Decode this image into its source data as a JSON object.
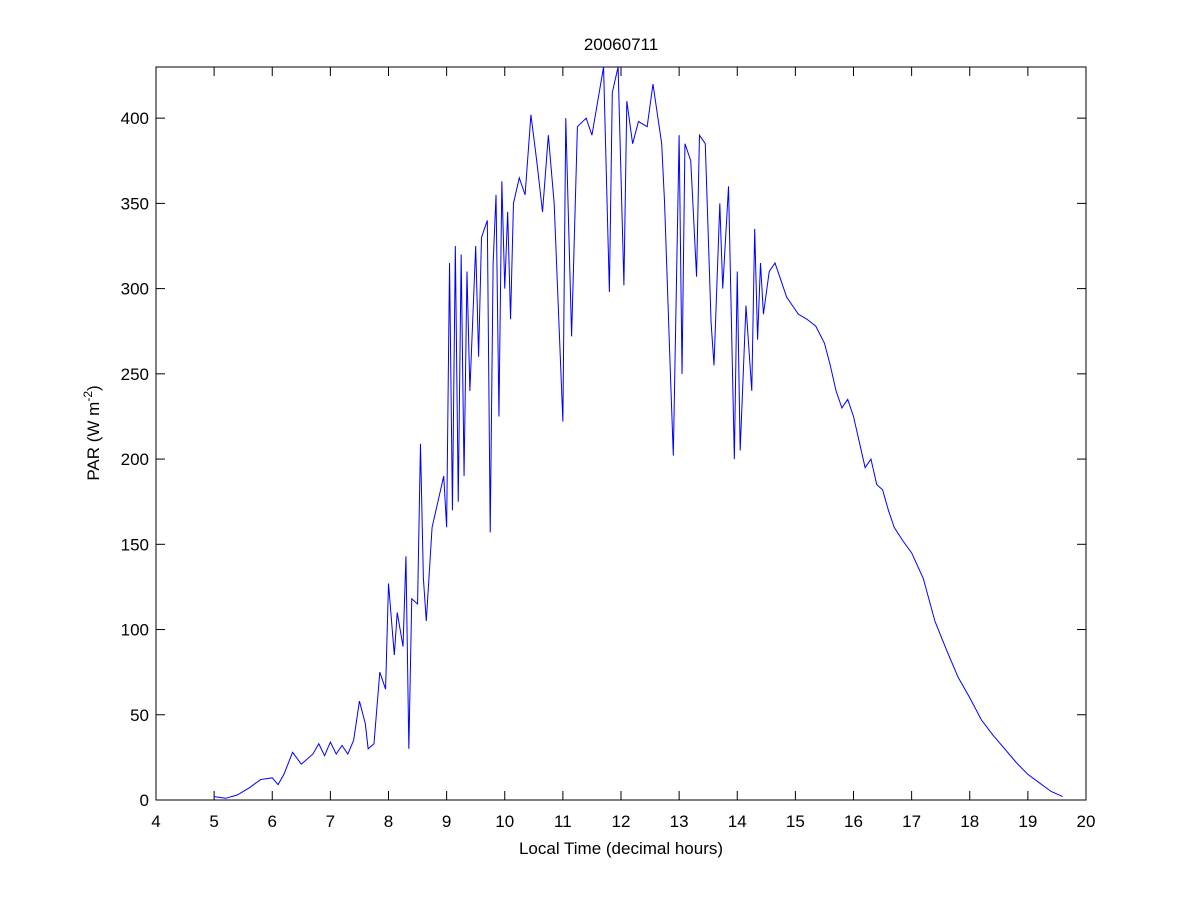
{
  "chart_data": {
    "type": "line",
    "title": "20060711",
    "xlabel": "Local Time (decimal hours)",
    "ylabel": {
      "text": "PAR (W m",
      "superscript": "-2",
      "suffix": ")"
    },
    "xlim": [
      4,
      20
    ],
    "xticks": [
      4,
      5,
      6,
      7,
      8,
      9,
      10,
      11,
      12,
      13,
      14,
      15,
      16,
      17,
      18,
      19,
      20
    ],
    "ylim": [
      0,
      430
    ],
    "yticks": [
      0,
      50,
      100,
      150,
      200,
      250,
      300,
      350,
      400
    ],
    "grid": false,
    "x": [
      5.0,
      5.2,
      5.4,
      5.6,
      5.8,
      6.0,
      6.1,
      6.2,
      6.35,
      6.5,
      6.7,
      6.8,
      6.9,
      7.0,
      7.1,
      7.2,
      7.3,
      7.4,
      7.5,
      7.6,
      7.65,
      7.75,
      7.85,
      7.95,
      8.0,
      8.1,
      8.15,
      8.25,
      8.3,
      8.35,
      8.4,
      8.5,
      8.55,
      8.6,
      8.65,
      8.75,
      8.85,
      8.95,
      9.0,
      9.05,
      9.1,
      9.15,
      9.2,
      9.25,
      9.3,
      9.35,
      9.4,
      9.5,
      9.55,
      9.6,
      9.7,
      9.75,
      9.8,
      9.85,
      9.9,
      9.95,
      10.0,
      10.05,
      10.1,
      10.15,
      10.25,
      10.35,
      10.45,
      10.55,
      10.65,
      10.75,
      10.85,
      11.0,
      11.05,
      11.15,
      11.25,
      11.4,
      11.5,
      11.6,
      11.7,
      11.8,
      11.85,
      11.95,
      12.05,
      12.1,
      12.2,
      12.3,
      12.45,
      12.55,
      12.7,
      12.75,
      12.85,
      12.9,
      13.0,
      13.05,
      13.1,
      13.2,
      13.3,
      13.35,
      13.45,
      13.55,
      13.6,
      13.7,
      13.75,
      13.85,
      13.95,
      14.0,
      14.05,
      14.15,
      14.25,
      14.3,
      14.35,
      14.4,
      14.45,
      14.55,
      14.65,
      14.75,
      14.85,
      14.95,
      15.05,
      15.2,
      15.35,
      15.5,
      15.6,
      15.7,
      15.8,
      15.9,
      16.0,
      16.1,
      16.2,
      16.3,
      16.4,
      16.5,
      16.6,
      16.7,
      16.85,
      17.0,
      17.2,
      17.4,
      17.6,
      17.8,
      18.0,
      18.2,
      18.4,
      18.6,
      18.8,
      19.0,
      19.2,
      19.4,
      19.6
    ],
    "series": [
      {
        "color": "#0000ff",
        "values": [
          2,
          1,
          3,
          7,
          12,
          13,
          9,
          15,
          28,
          21,
          27,
          33,
          26,
          34,
          27,
          32,
          27,
          35,
          58,
          45,
          30,
          33,
          75,
          65,
          127,
          85,
          110,
          90,
          143,
          30,
          118,
          115,
          209,
          130,
          105,
          160,
          175,
          190,
          160,
          315,
          170,
          325,
          175,
          320,
          190,
          310,
          240,
          325,
          260,
          330,
          340,
          157,
          315,
          355,
          225,
          363,
          300,
          345,
          282,
          350,
          365,
          355,
          402,
          375,
          345,
          390,
          350,
          222,
          400,
          272,
          395,
          400,
          390,
          410,
          430,
          298,
          415,
          430,
          302,
          410,
          385,
          398,
          395,
          420,
          385,
          350,
          250,
          202,
          390,
          250,
          385,
          375,
          307,
          390,
          385,
          280,
          255,
          350,
          300,
          360,
          200,
          310,
          205,
          290,
          240,
          335,
          270,
          315,
          285,
          310,
          315,
          305,
          295,
          290,
          285,
          282,
          278,
          268,
          255,
          240,
          230,
          235,
          225,
          210,
          195,
          200,
          185,
          182,
          170,
          160,
          152,
          145,
          130,
          105,
          88,
          72,
          60,
          47,
          38,
          30,
          22,
          15,
          10,
          5,
          2
        ]
      }
    ]
  }
}
